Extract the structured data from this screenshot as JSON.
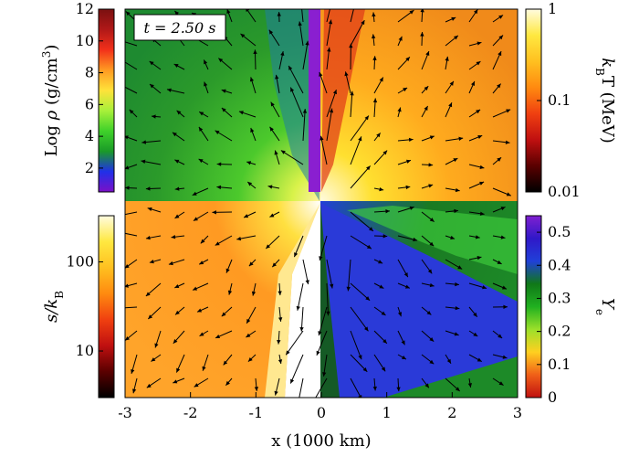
{
  "chart_data": {
    "type": "heatmap",
    "time_label": "t = 2.50 s",
    "xlabel": "x (1000 km)",
    "xlim": [
      -3,
      3
    ],
    "x_ticks": [
      {
        "v": -3,
        "t": "-3"
      },
      {
        "v": -2,
        "t": "-2"
      },
      {
        "v": -1,
        "t": "-1"
      },
      {
        "v": 0,
        "t": "0"
      },
      {
        "v": 1,
        "t": "1"
      },
      {
        "v": 2,
        "t": "2"
      },
      {
        "v": 3,
        "t": "3"
      }
    ],
    "panels": [
      {
        "quadrant": "top-left",
        "quantity": "log_density"
      },
      {
        "quadrant": "top-right",
        "quantity": "temperature"
      },
      {
        "quadrant": "bottom-left",
        "quantity": "entropy"
      },
      {
        "quadrant": "bottom-right",
        "quantity": "electron_fraction"
      }
    ],
    "colorbars": [
      {
        "id": "density",
        "position": "left-top",
        "label_text": "Log ",
        "label_symbol": "ρ",
        "label_unit": " (g/cm",
        "label_sup": "3",
        "label_close": ")",
        "scale": "linear",
        "range": [
          0.5,
          12
        ],
        "ticks": [
          {
            "v": 2,
            "t": "2"
          },
          {
            "v": 4,
            "t": "4"
          },
          {
            "v": 6,
            "t": "6"
          },
          {
            "v": 8,
            "t": "8"
          },
          {
            "v": 10,
            "t": "10"
          },
          {
            "v": 12,
            "t": "12"
          }
        ],
        "colors": [
          "#7b10c8",
          "#2030e8",
          "#1a9a28",
          "#3fd12a",
          "#a8f03a",
          "#ffe23a",
          "#ff9a22",
          "#f2301a",
          "#b01818",
          "#7a1010"
        ]
      },
      {
        "id": "temperature",
        "position": "right-top",
        "label_text": "k",
        "label_sub": "B",
        "label_rest": "T (MeV)",
        "scale": "log",
        "range": [
          0.01,
          1
        ],
        "ticks": [
          {
            "v": 0.01,
            "t": "0.01"
          },
          {
            "v": 0.1,
            "t": "0.1"
          },
          {
            "v": 1,
            "t": "1"
          }
        ],
        "colors": [
          "#000000",
          "#5a0000",
          "#c01010",
          "#f04010",
          "#ff8a10",
          "#ffc020",
          "#ffe840",
          "#fffce0"
        ]
      },
      {
        "id": "entropy",
        "position": "left-bottom",
        "label_text": "s/k",
        "label_sub": "B",
        "label_rest": "",
        "scale": "log",
        "range": [
          3,
          330
        ],
        "ticks": [
          {
            "v": 10,
            "t": "10"
          },
          {
            "v": 100,
            "t": "100"
          }
        ],
        "colors": [
          "#000000",
          "#5a0000",
          "#c01010",
          "#f04010",
          "#ff8a10",
          "#ffc020",
          "#ffe840",
          "#fffce0"
        ]
      },
      {
        "id": "electron_fraction",
        "position": "right-bottom",
        "label_text": "Y",
        "label_sub": "e",
        "label_rest": "",
        "scale": "linear",
        "range": [
          0,
          0.55
        ],
        "ticks": [
          {
            "v": 0,
            "t": "0"
          },
          {
            "v": 0.1,
            "t": "0.1"
          },
          {
            "v": 0.2,
            "t": "0.2"
          },
          {
            "v": 0.3,
            "t": "0.3"
          },
          {
            "v": 0.4,
            "t": "0.4"
          },
          {
            "v": 0.5,
            "t": "0.5"
          }
        ],
        "colors": [
          "#c01010",
          "#f06018",
          "#ffd020",
          "#9be02a",
          "#20b020",
          "#107818",
          "#2040d8",
          "#3018c8",
          "#8020d0"
        ]
      }
    ],
    "grid": false,
    "velocity_arrows": true
  }
}
